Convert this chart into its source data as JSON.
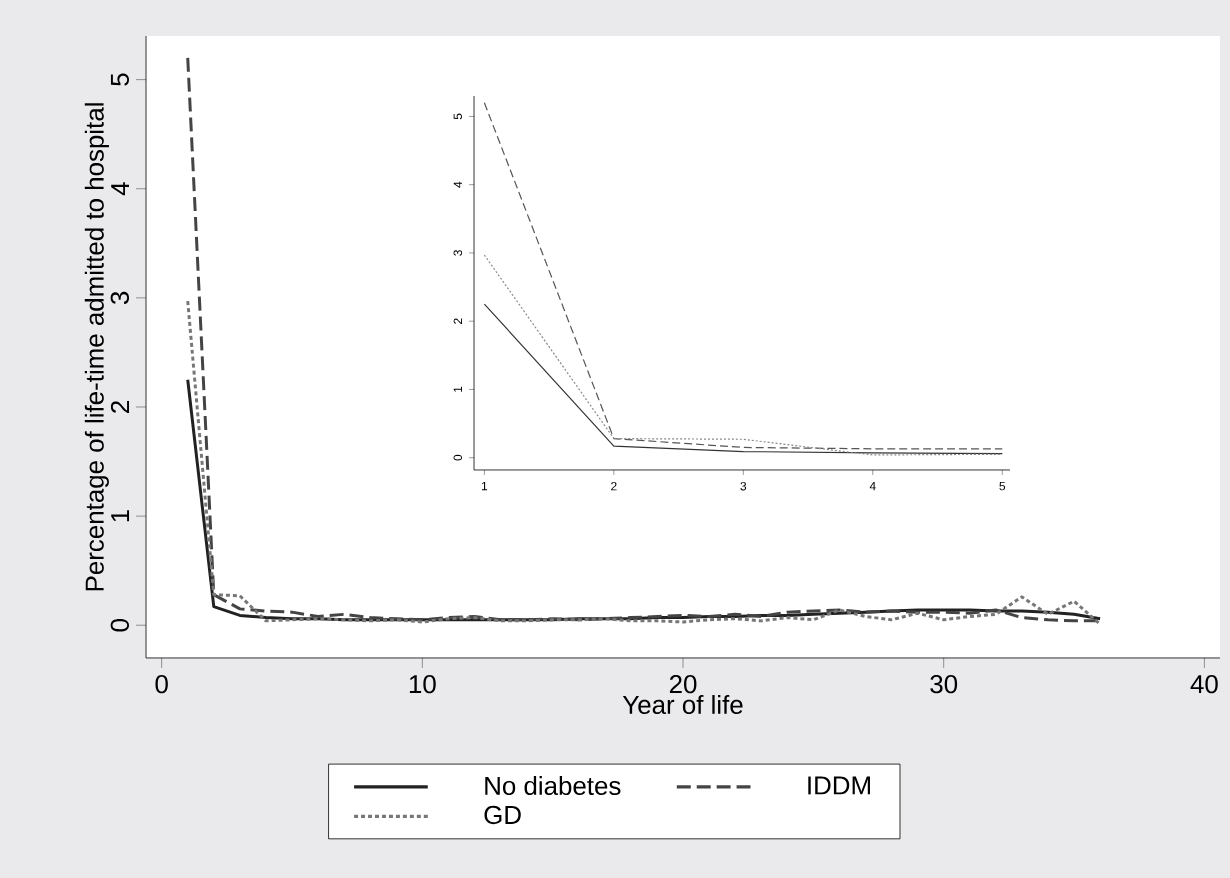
{
  "chart_data": [
    {
      "type": "line",
      "xlabel": "Year of life",
      "ylabel": "Percentage of life-time admitted to hospital",
      "x": [
        1,
        2,
        3,
        4,
        5,
        6,
        7,
        8,
        9,
        10,
        11,
        12,
        13,
        14,
        15,
        16,
        17,
        18,
        19,
        20,
        21,
        22,
        23,
        24,
        25,
        26,
        27,
        28,
        29,
        30,
        31,
        32,
        33,
        34,
        35,
        36
      ],
      "series": [
        {
          "name": "No diabetes",
          "color": "#222222",
          "line_style": "solid",
          "values": [
            2.25,
            0.17,
            0.09,
            0.07,
            0.06,
            0.06,
            0.05,
            0.05,
            0.05,
            0.05,
            0.05,
            0.05,
            0.05,
            0.05,
            0.05,
            0.06,
            0.06,
            0.06,
            0.07,
            0.07,
            0.08,
            0.08,
            0.09,
            0.09,
            0.1,
            0.11,
            0.12,
            0.13,
            0.14,
            0.14,
            0.14,
            0.13,
            0.13,
            0.12,
            0.1,
            0.06
          ]
        },
        {
          "name": "IDDM",
          "color": "#444444",
          "line_style": "dashed",
          "values": [
            5.2,
            0.28,
            0.15,
            0.13,
            0.12,
            0.08,
            0.1,
            0.07,
            0.06,
            0.05,
            0.07,
            0.08,
            0.05,
            0.05,
            0.06,
            0.05,
            0.06,
            0.07,
            0.08,
            0.09,
            0.08,
            0.1,
            0.08,
            0.12,
            0.13,
            0.14,
            0.12,
            0.13,
            0.12,
            0.12,
            0.11,
            0.14,
            0.07,
            0.05,
            0.04,
            0.04
          ]
        },
        {
          "name": "GD",
          "color": "#777777",
          "line_style": "dotted",
          "values": [
            2.97,
            0.28,
            0.27,
            0.04,
            0.05,
            0.06,
            0.05,
            0.04,
            0.05,
            0.03,
            0.06,
            0.07,
            0.04,
            0.04,
            0.05,
            0.05,
            0.06,
            0.04,
            0.04,
            0.03,
            0.05,
            0.06,
            0.04,
            0.07,
            0.05,
            0.14,
            0.08,
            0.05,
            0.11,
            0.05,
            0.08,
            0.1,
            0.26,
            0.1,
            0.22,
            0.01
          ]
        }
      ],
      "xlim": [
        -0.6,
        40.6
      ],
      "ylim": [
        -0.3,
        5.4
      ],
      "xticks": [
        0,
        10,
        20,
        30,
        40
      ],
      "yticks": [
        0,
        1,
        2,
        3,
        4,
        5
      ],
      "legend": "bottom"
    },
    {
      "type": "line",
      "x": [
        1,
        2,
        3,
        4,
        5
      ],
      "series": [
        {
          "color": "#333333",
          "line_style": "solid",
          "values": [
            2.25,
            0.17,
            0.09,
            0.07,
            0.06
          ]
        },
        {
          "color": "#555555",
          "line_style": "dashed",
          "values": [
            5.2,
            0.28,
            0.15,
            0.13,
            0.13
          ]
        },
        {
          "color": "#888888",
          "line_style": "dotted",
          "values": [
            2.97,
            0.28,
            0.27,
            0.04,
            0.05
          ]
        }
      ],
      "xlim": [
        0.92,
        5.06
      ],
      "ylim": [
        -0.18,
        5.3
      ],
      "xticks": [
        1,
        2,
        3,
        4,
        5
      ],
      "yticks": [
        0,
        1,
        2,
        3,
        4,
        5
      ]
    }
  ]
}
